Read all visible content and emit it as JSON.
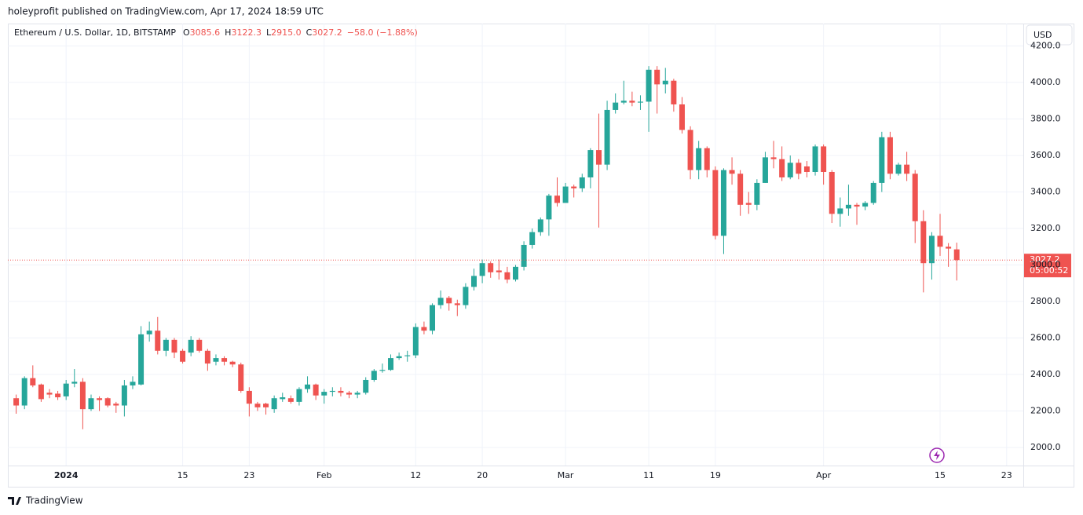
{
  "header": {
    "publisher": "holeyprofit published on TradingView.com, Apr 17, 2024 18:59 UTC"
  },
  "legend": {
    "symbol": "Ethereum / U.S. Dollar, 1D, BITSTAMP",
    "items": [
      {
        "key": "O",
        "value": "3085.6"
      },
      {
        "key": "H",
        "value": "3122.3"
      },
      {
        "key": "L",
        "value": "2915.0"
      },
      {
        "key": "C",
        "value": "3027.2"
      }
    ],
    "change": "−58.0 (−1.88%)"
  },
  "currency": "USD",
  "countdown": "05:00:52",
  "footer": {
    "brand": "TradingView"
  },
  "chart_data": {
    "type": "candlestick",
    "up_color": "#26a69a",
    "down_color": "#ef5350",
    "grid": true,
    "x": [
      "2023-12-26",
      "2023-12-27",
      "2023-12-28",
      "2023-12-29",
      "2023-12-30",
      "2023-12-31",
      "2024-01-01",
      "2024-01-02",
      "2024-01-03",
      "2024-01-04",
      "2024-01-05",
      "2024-01-06",
      "2024-01-07",
      "2024-01-08",
      "2024-01-09",
      "2024-01-10",
      "2024-01-11",
      "2024-01-12",
      "2024-01-13",
      "2024-01-14",
      "2024-01-15",
      "2024-01-16",
      "2024-01-17",
      "2024-01-18",
      "2024-01-19",
      "2024-01-20",
      "2024-01-21",
      "2024-01-22",
      "2024-01-23",
      "2024-01-24",
      "2024-01-25",
      "2024-01-26",
      "2024-01-27",
      "2024-01-28",
      "2024-01-29",
      "2024-01-30",
      "2024-01-31",
      "2024-02-01",
      "2024-02-02",
      "2024-02-03",
      "2024-02-04",
      "2024-02-05",
      "2024-02-06",
      "2024-02-07",
      "2024-02-08",
      "2024-02-09",
      "2024-02-10",
      "2024-02-11",
      "2024-02-12",
      "2024-02-13",
      "2024-02-14",
      "2024-02-15",
      "2024-02-16",
      "2024-02-17",
      "2024-02-18",
      "2024-02-19",
      "2024-02-20",
      "2024-02-21",
      "2024-02-22",
      "2024-02-23",
      "2024-02-24",
      "2024-02-25",
      "2024-02-26",
      "2024-02-27",
      "2024-02-28",
      "2024-02-29",
      "2024-03-01",
      "2024-03-02",
      "2024-03-03",
      "2024-03-04",
      "2024-03-05",
      "2024-03-06",
      "2024-03-07",
      "2024-03-08",
      "2024-03-09",
      "2024-03-10",
      "2024-03-11",
      "2024-03-12",
      "2024-03-13",
      "2024-03-14",
      "2024-03-15",
      "2024-03-16",
      "2024-03-17",
      "2024-03-18",
      "2024-03-19",
      "2024-03-20",
      "2024-03-21",
      "2024-03-22",
      "2024-03-23",
      "2024-03-24",
      "2024-03-25",
      "2024-03-26",
      "2024-03-27",
      "2024-03-28",
      "2024-03-29",
      "2024-03-30",
      "2024-03-31",
      "2024-04-01",
      "2024-04-02",
      "2024-04-03",
      "2024-04-04",
      "2024-04-05",
      "2024-04-06",
      "2024-04-07",
      "2024-04-08",
      "2024-04-09",
      "2024-04-10",
      "2024-04-11",
      "2024-04-12",
      "2024-04-13",
      "2024-04-14",
      "2024-04-15",
      "2024-04-16",
      "2024-04-17"
    ],
    "open": [
      2270,
      2230,
      2380,
      2345,
      2300,
      2295,
      2280,
      2350,
      2360,
      2210,
      2270,
      2270,
      2240,
      2230,
      2340,
      2345,
      2620,
      2640,
      2530,
      2590,
      2530,
      2520,
      2590,
      2530,
      2470,
      2490,
      2470,
      2455,
      2310,
      2240,
      2240,
      2210,
      2265,
      2270,
      2250,
      2320,
      2345,
      2285,
      2305,
      2310,
      2300,
      2290,
      2300,
      2370,
      2420,
      2425,
      2490,
      2500,
      2505,
      2660,
      2640,
      2780,
      2820,
      2790,
      2780,
      2880,
      2940,
      3010,
      2970,
      2960,
      2920,
      2990,
      3110,
      3180,
      3250,
      3380,
      3340,
      3430,
      3420,
      3480,
      3630,
      3550,
      3850,
      3890,
      3900,
      3890,
      3895,
      4070,
      3990,
      4010,
      3880,
      3740,
      3520,
      3640,
      3520,
      3160,
      3520,
      3500,
      3340,
      3330,
      3450,
      3590,
      3580,
      3480,
      3560,
      3540,
      3510,
      3650,
      3510,
      3280,
      3310,
      3330,
      3320,
      3340,
      3450,
      3700,
      3500,
      3550,
      3500,
      3240,
      3010,
      3160,
      3100,
      3085.6
    ],
    "high": [
      2290,
      2390,
      2450,
      2350,
      2320,
      2310,
      2370,
      2430,
      2380,
      2290,
      2280,
      2275,
      2250,
      2370,
      2390,
      2665,
      2690,
      2715,
      2600,
      2600,
      2540,
      2610,
      2600,
      2540,
      2510,
      2500,
      2475,
      2465,
      2330,
      2250,
      2245,
      2285,
      2300,
      2285,
      2330,
      2390,
      2350,
      2320,
      2330,
      2330,
      2310,
      2310,
      2385,
      2430,
      2460,
      2510,
      2520,
      2530,
      2680,
      2690,
      2790,
      2860,
      2830,
      2810,
      2900,
      2980,
      3030,
      3020,
      3030,
      2990,
      3000,
      3130,
      3200,
      3260,
      3390,
      3480,
      3450,
      3440,
      3500,
      3640,
      3830,
      3900,
      3940,
      4010,
      3950,
      3930,
      4090,
      4090,
      4080,
      4020,
      3920,
      3760,
      3680,
      3650,
      3540,
      3530,
      3590,
      3520,
      3400,
      3470,
      3620,
      3680,
      3650,
      3600,
      3580,
      3570,
      3660,
      3660,
      3520,
      3370,
      3440,
      3340,
      3350,
      3460,
      3730,
      3730,
      3560,
      3620,
      3520,
      3300,
      3180,
      3280,
      3120,
      3122.3
    ],
    "low": [
      2185,
      2210,
      2330,
      2250,
      2270,
      2260,
      2260,
      2330,
      2100,
      2200,
      2200,
      2220,
      2190,
      2170,
      2320,
      2340,
      2580,
      2510,
      2500,
      2490,
      2460,
      2500,
      2520,
      2420,
      2450,
      2450,
      2440,
      2300,
      2170,
      2200,
      2180,
      2190,
      2250,
      2240,
      2230,
      2300,
      2260,
      2240,
      2280,
      2280,
      2270,
      2270,
      2290,
      2360,
      2410,
      2420,
      2480,
      2470,
      2490,
      2620,
      2620,
      2760,
      2750,
      2720,
      2760,
      2860,
      2900,
      2930,
      2920,
      2900,
      2910,
      2970,
      3090,
      3160,
      3160,
      3320,
      3340,
      3370,
      3400,
      3420,
      3205,
      3520,
      3830,
      3880,
      3870,
      3850,
      3730,
      3830,
      3940,
      3840,
      3720,
      3470,
      3470,
      3480,
      3140,
      3060,
      3440,
      3270,
      3280,
      3300,
      3450,
      3530,
      3460,
      3470,
      3470,
      3480,
      3490,
      3440,
      3230,
      3210,
      3270,
      3220,
      3300,
      3330,
      3400,
      3470,
      3490,
      3460,
      3120,
      2850,
      2920,
      3050,
      2990,
      2915.0
    ],
    "close": [
      2230,
      2380,
      2340,
      2265,
      2290,
      2275,
      2350,
      2360,
      2210,
      2270,
      2260,
      2230,
      2230,
      2340,
      2360,
      2620,
      2640,
      2530,
      2590,
      2520,
      2470,
      2590,
      2530,
      2460,
      2490,
      2470,
      2455,
      2310,
      2240,
      2220,
      2220,
      2270,
      2275,
      2250,
      2320,
      2345,
      2285,
      2305,
      2310,
      2300,
      2290,
      2300,
      2370,
      2420,
      2425,
      2490,
      2500,
      2505,
      2660,
      2640,
      2780,
      2820,
      2790,
      2780,
      2880,
      2940,
      3010,
      2960,
      2960,
      2920,
      2990,
      3110,
      3180,
      3250,
      3380,
      3340,
      3430,
      3420,
      3480,
      3630,
      3550,
      3850,
      3890,
      3900,
      3890,
      3895,
      4070,
      3990,
      4010,
      3880,
      3740,
      3520,
      3640,
      3520,
      3160,
      3520,
      3500,
      3330,
      3330,
      3450,
      3590,
      3580,
      3480,
      3560,
      3500,
      3510,
      3650,
      3510,
      3280,
      3310,
      3330,
      3320,
      3340,
      3450,
      3700,
      3500,
      3550,
      3500,
      3240,
      3010,
      3160,
      3100,
      3090,
      3027.2
    ],
    "xlim": [
      "2023-12-25",
      "2024-04-25"
    ],
    "xticks": [
      {
        "value": "2024-01-01",
        "label": "2024"
      },
      {
        "value": "2024-01-15",
        "label": "15"
      },
      {
        "value": "2024-01-23",
        "label": "23"
      },
      {
        "value": "2024-02-01",
        "label": "Feb"
      },
      {
        "value": "2024-02-12",
        "label": "12"
      },
      {
        "value": "2024-02-20",
        "label": "20"
      },
      {
        "value": "2024-03-01",
        "label": "Mar"
      },
      {
        "value": "2024-03-11",
        "label": "11"
      },
      {
        "value": "2024-03-19",
        "label": "19"
      },
      {
        "value": "2024-04-01",
        "label": "Apr"
      },
      {
        "value": "2024-04-15",
        "label": "15"
      },
      {
        "value": "2024-04-23",
        "label": "23"
      }
    ],
    "ylim": [
      1901,
      4323
    ],
    "yticks": [
      {
        "value": 2000,
        "label": "2000.0"
      },
      {
        "value": 2200,
        "label": "2200.0"
      },
      {
        "value": 2400,
        "label": "2400.0"
      },
      {
        "value": 2600,
        "label": "2600.0"
      },
      {
        "value": 2800,
        "label": "2800.0"
      },
      {
        "value": 3000,
        "label": "3000.0"
      },
      {
        "value": 3200,
        "label": "3200.0"
      },
      {
        "value": 3400,
        "label": "3400.0"
      },
      {
        "value": 3600,
        "label": "3600.0"
      },
      {
        "value": 3800,
        "label": "3800.0"
      },
      {
        "value": 4000,
        "label": "4000.0"
      },
      {
        "value": 4200,
        "label": "4200.0"
      }
    ]
  }
}
